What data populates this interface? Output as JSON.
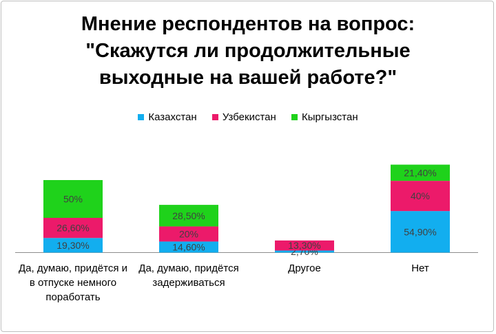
{
  "chart_data": {
    "type": "bar",
    "stacked": true,
    "title_lines": [
      "Мнение респондентов на вопрос:",
      "\"Скажутся ли продолжительные",
      "выходные на вашей работе?\""
    ],
    "categories": [
      "Да,  думаю, придётся и в отпуске немного поработать",
      "Да, думаю, придётся задерживаться",
      "Другое",
      "Нет"
    ],
    "series": [
      {
        "name": "Казахстан",
        "color": "#12aeef",
        "values": [
          19.3,
          14.6,
          2.7,
          54.9
        ],
        "labels": [
          "19,30%",
          "14,60%",
          "2,70%",
          "54,90%"
        ]
      },
      {
        "name": "Узбекистан",
        "color": "#ec1a6a",
        "values": [
          26.6,
          20,
          13.3,
          40
        ],
        "labels": [
          "26,60%",
          "20%",
          "13,30%",
          "40%"
        ]
      },
      {
        "name": "Кыргызстан",
        "color": "#1fd21b",
        "values": [
          50,
          28.5,
          0,
          21.4
        ],
        "labels": [
          "50%",
          "28,50%",
          "",
          "21,40%"
        ]
      }
    ],
    "legend_position": "top",
    "grid": false,
    "ylim": [
      0,
      120
    ]
  }
}
